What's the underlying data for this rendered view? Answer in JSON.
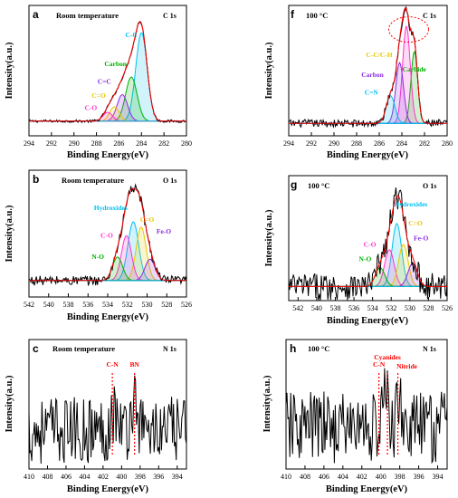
{
  "chart_data": [
    {
      "type": "line",
      "panel": "a",
      "condition": "Room temperature",
      "core_level": "C 1s",
      "xlabel": "Binding Energy(eV)",
      "ylabel": "Intensity(a.u.)",
      "xlim": [
        294,
        280
      ],
      "xticks": [
        294,
        292,
        290,
        288,
        286,
        284,
        282,
        280
      ],
      "ylim": [
        0,
        1
      ],
      "raw_noise": 0.012,
      "baseline": 0.1,
      "components": [
        {
          "name": "C-C",
          "color": "#00c0f0",
          "center": 284.0,
          "height": 0.8,
          "fwhm": 1.2
        },
        {
          "name": "Carbon",
          "color": "#00b000",
          "center": 284.9,
          "height": 0.4,
          "fwhm": 1.2
        },
        {
          "name": "C=C",
          "color": "#8a2be2",
          "center": 285.7,
          "height": 0.24,
          "fwhm": 1.1
        },
        {
          "name": "C=O",
          "color": "#e6c800",
          "center": 286.4,
          "height": 0.13,
          "fwhm": 1.0
        },
        {
          "name": "C-O",
          "color": "#ff33cc",
          "center": 287.0,
          "height": 0.08,
          "fwhm": 1.0
        }
      ],
      "annotations": [
        {
          "text": "C-C",
          "color": "#00c0f0",
          "x": 284.9,
          "y": 0.86
        },
        {
          "text": "Carbon",
          "color": "#00b000",
          "x": 286.3,
          "y": 0.6
        },
        {
          "text": "C=C",
          "color": "#8a2be2",
          "x": 287.3,
          "y": 0.44
        },
        {
          "text": "C=O",
          "color": "#e6c800",
          "x": 287.8,
          "y": 0.31
        },
        {
          "text": "C-O",
          "color": "#ff33cc",
          "x": 288.5,
          "y": 0.2
        }
      ]
    },
    {
      "type": "line",
      "panel": "f",
      "condition": "100 °C",
      "core_level": "C 1s",
      "xlabel": "Binding Energy(eV)",
      "ylabel": "Intensity(a.u.)",
      "xlim": [
        294,
        280
      ],
      "xticks": [
        294,
        292,
        290,
        288,
        286,
        284,
        282,
        280
      ],
      "ylim": [
        0,
        1
      ],
      "raw_noise": 0.035,
      "baseline": 0.08,
      "components": [
        {
          "name": "Carbide",
          "color": "#00b000",
          "center": 282.9,
          "height": 0.65,
          "fwhm": 0.7
        },
        {
          "name": "C-C/C-H",
          "color": "#ff33cc",
          "center": 283.6,
          "height": 0.88,
          "fwhm": 0.8
        },
        {
          "name": "Carbon",
          "color": "#8a2be2",
          "center": 284.2,
          "height": 0.55,
          "fwhm": 0.8
        },
        {
          "name": "C=N",
          "color": "#00c0f0",
          "center": 285.0,
          "height": 0.25,
          "fwhm": 0.9
        }
      ],
      "annotations": [
        {
          "text": "C-C/C-H",
          "color": "#e6c800",
          "x": 286.0,
          "y": 0.68
        },
        {
          "text": "Carbon",
          "color": "#8a2be2",
          "x": 286.6,
          "y": 0.5
        },
        {
          "text": "C=N",
          "color": "#00c0f0",
          "x": 286.7,
          "y": 0.34
        },
        {
          "text": "Carbide",
          "color": "#00b000",
          "x": 282.9,
          "y": 0.55
        }
      ],
      "highlight_circle": {
        "color": "#ff0000",
        "x": 283.4,
        "y": 0.93
      }
    },
    {
      "type": "line",
      "panel": "b",
      "condition": "Room temperature",
      "core_level": "O 1s",
      "xlabel": "Binding Energy(eV)",
      "ylabel": "Intensity(a.u.)",
      "xlim": [
        542,
        526
      ],
      "xticks": [
        542,
        540,
        538,
        536,
        534,
        532,
        530,
        528,
        526
      ],
      "ylim": [
        0,
        1
      ],
      "raw_noise": 0.045,
      "baseline": 0.12,
      "components": [
        {
          "name": "Hydroxides",
          "color": "#00c0f0",
          "center": 531.4,
          "height": 0.55,
          "fwhm": 1.3
        },
        {
          "name": "C=O",
          "color": "#e6c800",
          "center": 530.6,
          "height": 0.5,
          "fwhm": 1.2
        },
        {
          "name": "C-O",
          "color": "#ff33cc",
          "center": 532.1,
          "height": 0.42,
          "fwhm": 1.2
        },
        {
          "name": "Fe-O",
          "color": "#8a2be2",
          "center": 529.7,
          "height": 0.2,
          "fwhm": 1.2
        },
        {
          "name": "N-O",
          "color": "#00b000",
          "center": 533.0,
          "height": 0.22,
          "fwhm": 1.2
        }
      ],
      "annotations": [
        {
          "text": "Hydroxides",
          "color": "#00c0f0",
          "x": 533.7,
          "y": 0.78
        },
        {
          "text": "C=O",
          "color": "#e6c800",
          "x": 530.0,
          "y": 0.67
        },
        {
          "text": "C-O",
          "color": "#ff33cc",
          "x": 534.1,
          "y": 0.52
        },
        {
          "text": "Fe-O",
          "color": "#8a2be2",
          "x": 528.3,
          "y": 0.56
        },
        {
          "text": "N-O",
          "color": "#00b000",
          "x": 535.0,
          "y": 0.32
        }
      ]
    },
    {
      "type": "line",
      "panel": "g",
      "condition": "100 °C",
      "core_level": "O 1s",
      "xlabel": "Binding Energy(eV)",
      "ylabel": "Intensity(a.u.)",
      "xlim": [
        543,
        526
      ],
      "xticks": [
        542,
        540,
        538,
        536,
        534,
        532,
        530,
        528,
        526
      ],
      "ylim": [
        0,
        1
      ],
      "raw_noise": 0.13,
      "baseline": 0.1,
      "components": [
        {
          "name": "Hydroxides",
          "color": "#00c0f0",
          "center": 531.4,
          "height": 0.6,
          "fwhm": 1.2
        },
        {
          "name": "C-O",
          "color": "#ff33cc",
          "center": 532.2,
          "height": 0.35,
          "fwhm": 1.2
        },
        {
          "name": "C=O",
          "color": "#e6c800",
          "center": 530.7,
          "height": 0.4,
          "fwhm": 1.2
        },
        {
          "name": "Fe-O",
          "color": "#8a2be2",
          "center": 529.7,
          "height": 0.22,
          "fwhm": 1.2
        },
        {
          "name": "N-O",
          "color": "#00b000",
          "center": 533.2,
          "height": 0.18,
          "fwhm": 1.2
        }
      ],
      "annotations": [
        {
          "text": "Hydroxides",
          "color": "#00c0f0",
          "x": 529.9,
          "y": 0.86
        },
        {
          "text": "C=O",
          "color": "#e6c800",
          "x": 529.4,
          "y": 0.68
        },
        {
          "text": "C-O",
          "color": "#ff33cc",
          "x": 534.3,
          "y": 0.48
        },
        {
          "text": "Fe-O",
          "color": "#8a2be2",
          "x": 528.8,
          "y": 0.54
        },
        {
          "text": "N-O",
          "color": "#00b000",
          "x": 534.8,
          "y": 0.34
        }
      ]
    },
    {
      "type": "line",
      "panel": "c",
      "condition": "Room temperature",
      "core_level": "N 1s",
      "xlabel": "Binding Energy(eV)",
      "ylabel": "Intensity(a.u.)",
      "xlim": [
        410,
        393
      ],
      "xticks": [
        410,
        408,
        406,
        404,
        402,
        400,
        398,
        396,
        394
      ],
      "ylim": [
        0,
        1
      ],
      "raw_noise": 0.14,
      "baseline": 0.32,
      "components": [],
      "peaks": [
        {
          "center": 400.8,
          "height": 0.18,
          "fwhm": 0.9
        },
        {
          "center": 398.6,
          "height": 0.28,
          "fwhm": 0.8
        }
      ],
      "markers": [
        {
          "text": "C-N",
          "color": "#ff0000",
          "x": 401.0
        },
        {
          "text": "BN",
          "color": "#ff0000",
          "x": 398.6
        }
      ]
    },
    {
      "type": "line",
      "panel": "h",
      "condition": "100 °C",
      "core_level": "N 1s",
      "xlabel": "Binding Energy(eV)",
      "ylabel": "Intensity(a.u.)",
      "xlim": [
        410,
        393
      ],
      "xticks": [
        410,
        408,
        406,
        404,
        402,
        400,
        398,
        396,
        394
      ],
      "ylim": [
        0,
        1
      ],
      "raw_noise": 0.15,
      "baseline": 0.35,
      "components": [],
      "peaks": [
        {
          "center": 399.5,
          "height": 0.28,
          "fwhm": 0.7
        },
        {
          "center": 398.0,
          "height": 0.22,
          "fwhm": 0.7
        }
      ],
      "markers": [
        {
          "text": "C-N",
          "color": "#ff0000",
          "x": 400.2
        },
        {
          "text": "Cyanides",
          "color": "#ff0000",
          "x": 399.3
        },
        {
          "text": "Nitride",
          "color": "#ff0000",
          "x": 398.2
        }
      ]
    }
  ]
}
